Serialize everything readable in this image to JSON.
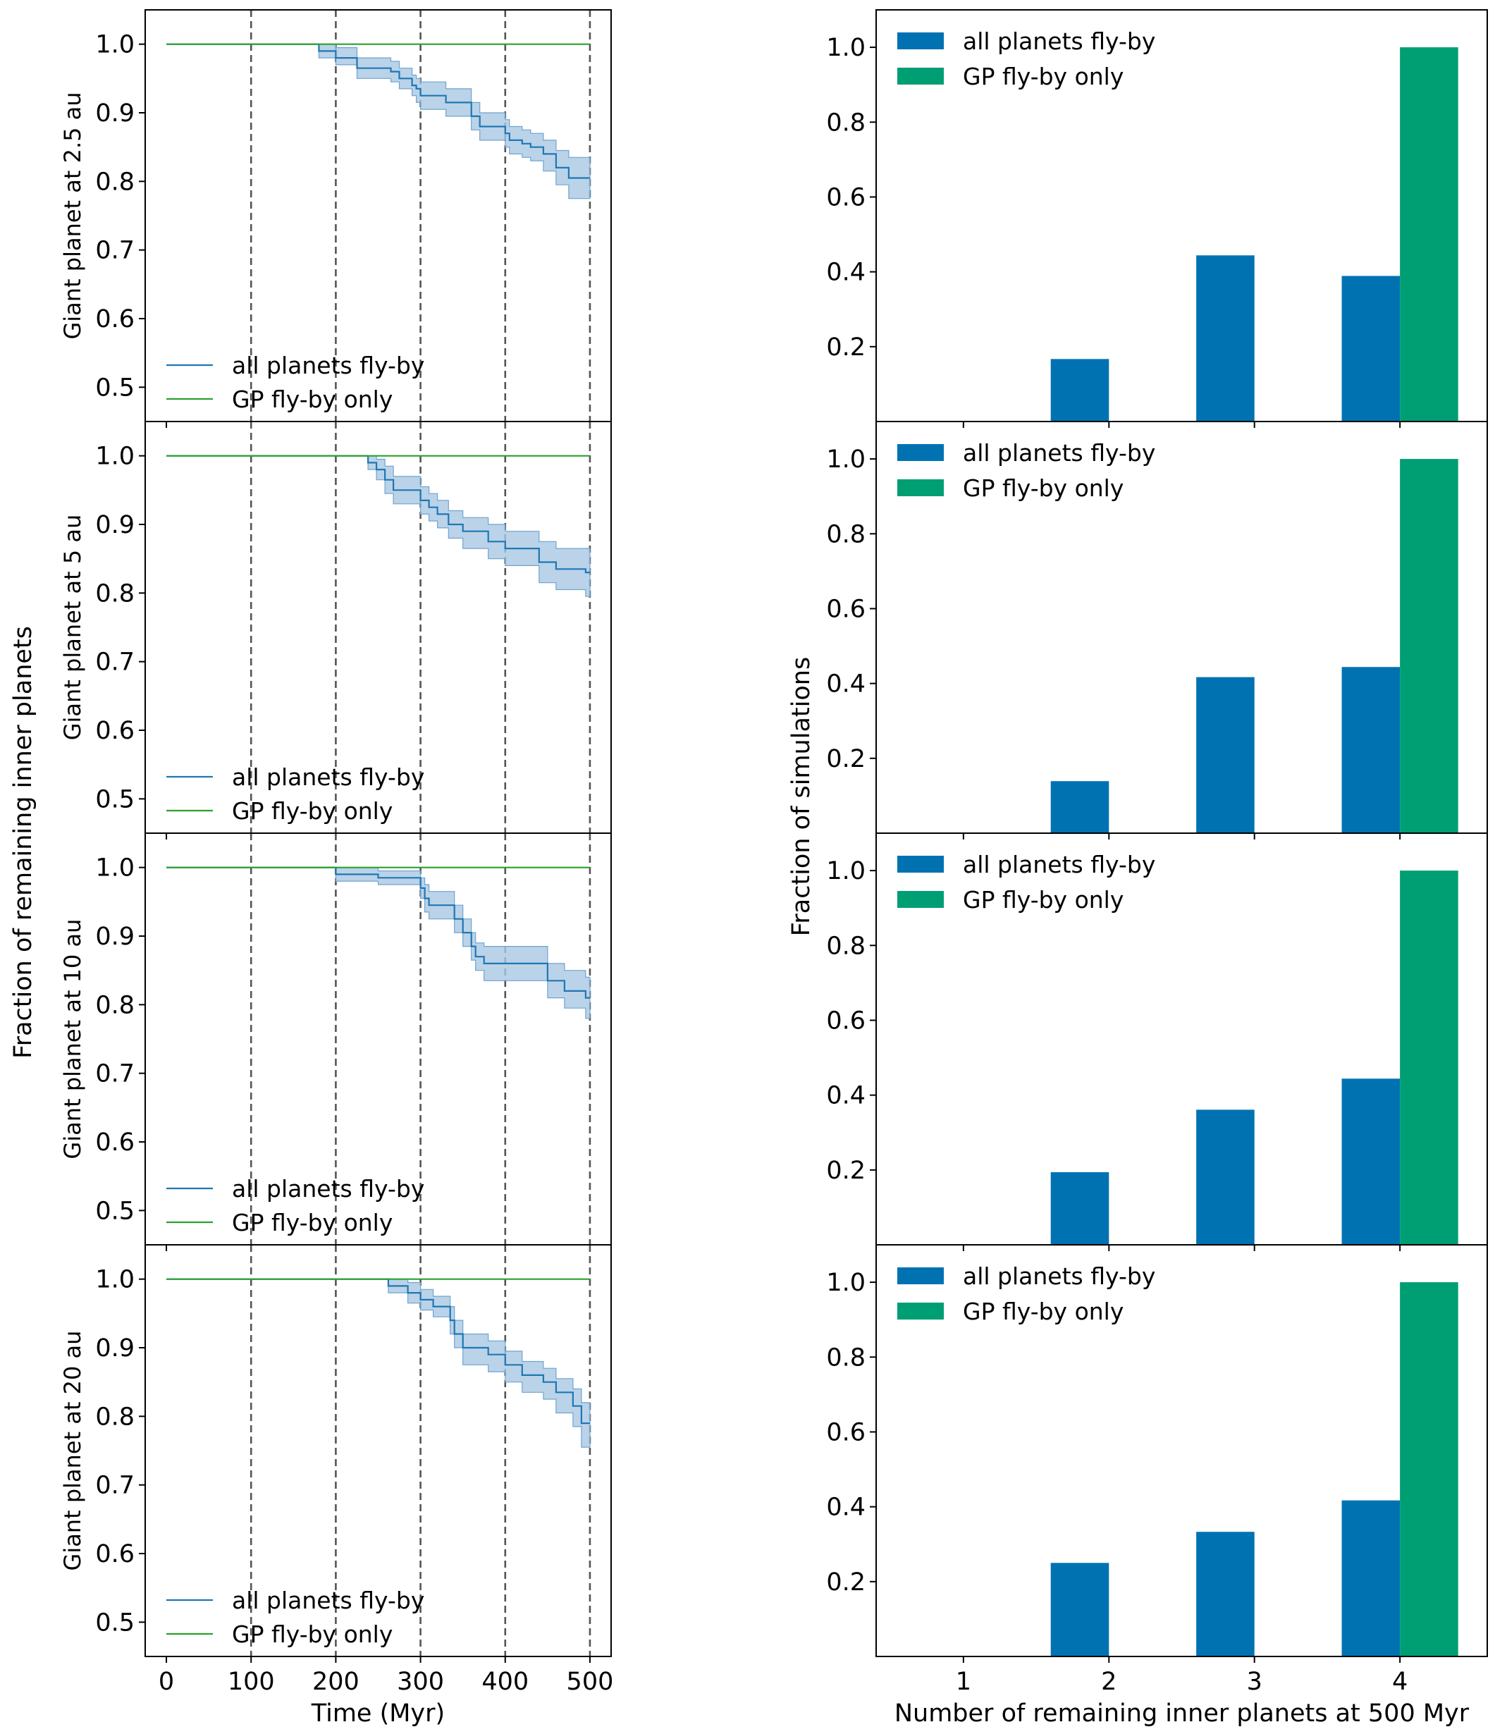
{
  "figure": {
    "left_ylabel": "Fraction of remaining inner planets",
    "right_ylabel": "Fraction of simulations"
  },
  "colors": {
    "all_line": "#1f77b4",
    "gp_line": "#2ca02c",
    "band": "#a9c8e3",
    "bar_all": "#0072b2",
    "bar_gp": "#009e73",
    "vline": "#555555"
  },
  "chart_data": [
    {
      "type": "line",
      "panel": "left-1",
      "ylabel": "Giant planet at 2.5 au",
      "xlabel": "",
      "xlim": [
        -25,
        525
      ],
      "ylim": [
        0.45,
        1.05
      ],
      "xticks": [
        0,
        100,
        200,
        300,
        400,
        500
      ],
      "yticks": [
        0.5,
        0.6,
        0.7,
        0.8,
        0.9,
        1.0
      ],
      "ytick_labels": [
        "0.5",
        "0.6",
        "0.7",
        "0.8",
        "0.9",
        "1.0"
      ],
      "vlines": [
        100,
        200,
        300,
        400,
        500
      ],
      "legend": [
        "all planets fly-by",
        "GP fly-by only"
      ],
      "series": [
        {
          "name": "all planets fly-by",
          "step": true,
          "x": [
            0,
            180,
            180,
            200,
            200,
            225,
            225,
            265,
            265,
            275,
            275,
            290,
            290,
            295,
            295,
            300,
            300,
            330,
            330,
            360,
            360,
            370,
            370,
            400,
            400,
            405,
            405,
            420,
            420,
            430,
            430,
            445,
            445,
            460,
            460,
            475,
            475,
            500
          ],
          "y": [
            1.0,
            1.0,
            0.99,
            0.99,
            0.98,
            0.98,
            0.965,
            0.965,
            0.96,
            0.96,
            0.95,
            0.95,
            0.94,
            0.94,
            0.935,
            0.935,
            0.925,
            0.925,
            0.915,
            0.915,
            0.895,
            0.895,
            0.88,
            0.88,
            0.87,
            0.87,
            0.86,
            0.86,
            0.855,
            0.855,
            0.85,
            0.85,
            0.84,
            0.84,
            0.82,
            0.82,
            0.805,
            0.805
          ],
          "lower": [
            1.0,
            1.0,
            0.98,
            0.98,
            0.97,
            0.97,
            0.95,
            0.95,
            0.945,
            0.945,
            0.935,
            0.935,
            0.925,
            0.925,
            0.915,
            0.915,
            0.905,
            0.905,
            0.895,
            0.895,
            0.875,
            0.875,
            0.86,
            0.86,
            0.85,
            0.85,
            0.84,
            0.84,
            0.835,
            0.835,
            0.83,
            0.83,
            0.815,
            0.815,
            0.795,
            0.795,
            0.775,
            0.775
          ],
          "upper": [
            1.0,
            1.0,
            1.0,
            1.0,
            0.995,
            0.995,
            0.98,
            0.98,
            0.975,
            0.975,
            0.965,
            0.965,
            0.955,
            0.955,
            0.95,
            0.95,
            0.945,
            0.945,
            0.935,
            0.935,
            0.915,
            0.915,
            0.9,
            0.9,
            0.89,
            0.89,
            0.88,
            0.88,
            0.875,
            0.875,
            0.87,
            0.87,
            0.86,
            0.86,
            0.845,
            0.845,
            0.835,
            0.835
          ]
        },
        {
          "name": "GP fly-by only",
          "x": [
            0,
            500
          ],
          "y": [
            1.0,
            1.0
          ]
        }
      ]
    },
    {
      "type": "line",
      "panel": "left-2",
      "ylabel": "Giant planet at 5 au",
      "xlabel": "",
      "xlim": [
        -25,
        525
      ],
      "ylim": [
        0.45,
        1.05
      ],
      "xticks": [
        0,
        100,
        200,
        300,
        400,
        500
      ],
      "yticks": [
        0.5,
        0.6,
        0.7,
        0.8,
        0.9,
        1.0
      ],
      "ytick_labels": [
        "0.5",
        "0.6",
        "0.7",
        "0.8",
        "0.9",
        "1.0"
      ],
      "vlines": [
        100,
        200,
        300,
        400,
        500
      ],
      "legend": [
        "all planets fly-by",
        "GP fly-by only"
      ],
      "series": [
        {
          "name": "all planets fly-by",
          "step": true,
          "x": [
            0,
            238,
            238,
            248,
            248,
            258,
            258,
            268,
            268,
            300,
            300,
            310,
            310,
            320,
            320,
            333,
            333,
            350,
            350,
            380,
            380,
            400,
            400,
            440,
            440,
            460,
            460,
            495,
            495,
            500
          ],
          "y": [
            1.0,
            1.0,
            0.99,
            0.99,
            0.98,
            0.98,
            0.965,
            0.965,
            0.95,
            0.95,
            0.935,
            0.935,
            0.925,
            0.925,
            0.915,
            0.915,
            0.9,
            0.9,
            0.89,
            0.89,
            0.875,
            0.875,
            0.865,
            0.865,
            0.845,
            0.845,
            0.835,
            0.835,
            0.83,
            0.83
          ],
          "lower": [
            1.0,
            1.0,
            0.98,
            0.98,
            0.965,
            0.965,
            0.945,
            0.945,
            0.93,
            0.93,
            0.915,
            0.915,
            0.905,
            0.905,
            0.895,
            0.895,
            0.88,
            0.88,
            0.865,
            0.865,
            0.85,
            0.85,
            0.84,
            0.84,
            0.815,
            0.815,
            0.805,
            0.805,
            0.795,
            0.795
          ],
          "upper": [
            1.0,
            1.0,
            1.0,
            1.0,
            0.995,
            0.995,
            0.985,
            0.985,
            0.97,
            0.97,
            0.955,
            0.955,
            0.945,
            0.945,
            0.935,
            0.935,
            0.92,
            0.92,
            0.91,
            0.91,
            0.9,
            0.9,
            0.89,
            0.89,
            0.875,
            0.875,
            0.865,
            0.865,
            0.865,
            0.865
          ]
        },
        {
          "name": "GP fly-by only",
          "x": [
            0,
            500
          ],
          "y": [
            1.0,
            1.0
          ]
        }
      ]
    },
    {
      "type": "line",
      "panel": "left-3",
      "ylabel": "Giant planet at 10 au",
      "xlabel": "",
      "xlim": [
        -25,
        525
      ],
      "ylim": [
        0.45,
        1.05
      ],
      "xticks": [
        0,
        100,
        200,
        300,
        400,
        500
      ],
      "yticks": [
        0.5,
        0.6,
        0.7,
        0.8,
        0.9,
        1.0
      ],
      "ytick_labels": [
        "0.5",
        "0.6",
        "0.7",
        "0.8",
        "0.9",
        "1.0"
      ],
      "vlines": [
        100,
        200,
        300,
        400,
        500
      ],
      "legend": [
        "all planets fly-by",
        "GP fly-by only"
      ],
      "series": [
        {
          "name": "all planets fly-by",
          "step": true,
          "x": [
            0,
            200,
            200,
            250,
            250,
            300,
            300,
            305,
            305,
            310,
            310,
            340,
            340,
            350,
            350,
            360,
            360,
            365,
            365,
            375,
            375,
            450,
            450,
            470,
            470,
            495,
            495,
            500
          ],
          "y": [
            1.0,
            1.0,
            0.99,
            0.99,
            0.985,
            0.985,
            0.97,
            0.97,
            0.955,
            0.955,
            0.945,
            0.945,
            0.925,
            0.925,
            0.905,
            0.905,
            0.885,
            0.885,
            0.87,
            0.87,
            0.86,
            0.86,
            0.835,
            0.835,
            0.82,
            0.82,
            0.81,
            0.81
          ],
          "lower": [
            1.0,
            1.0,
            0.98,
            0.98,
            0.975,
            0.975,
            0.955,
            0.955,
            0.935,
            0.935,
            0.925,
            0.925,
            0.905,
            0.905,
            0.885,
            0.885,
            0.865,
            0.865,
            0.85,
            0.85,
            0.835,
            0.835,
            0.81,
            0.81,
            0.795,
            0.795,
            0.78,
            0.78
          ],
          "upper": [
            1.0,
            1.0,
            1.0,
            1.0,
            0.995,
            0.995,
            0.985,
            0.985,
            0.975,
            0.975,
            0.965,
            0.965,
            0.945,
            0.945,
            0.925,
            0.925,
            0.905,
            0.905,
            0.89,
            0.89,
            0.885,
            0.885,
            0.86,
            0.86,
            0.85,
            0.85,
            0.84,
            0.84
          ]
        },
        {
          "name": "GP fly-by only",
          "x": [
            0,
            500
          ],
          "y": [
            1.0,
            1.0
          ]
        }
      ]
    },
    {
      "type": "line",
      "panel": "left-4",
      "ylabel": "Giant planet at 20 au",
      "xlabel": "Time (Myr)",
      "xlim": [
        -25,
        525
      ],
      "ylim": [
        0.45,
        1.05
      ],
      "xticks": [
        0,
        100,
        200,
        300,
        400,
        500
      ],
      "xtick_labels": [
        "0",
        "100",
        "200",
        "300",
        "400",
        "500"
      ],
      "yticks": [
        0.5,
        0.6,
        0.7,
        0.8,
        0.9,
        1.0
      ],
      "ytick_labels": [
        "0.5",
        "0.6",
        "0.7",
        "0.8",
        "0.9",
        "1.0"
      ],
      "vlines": [
        100,
        200,
        300,
        400,
        500
      ],
      "legend": [
        "all planets fly-by",
        "GP fly-by only"
      ],
      "series": [
        {
          "name": "all planets fly-by",
          "step": true,
          "x": [
            0,
            262,
            262,
            285,
            285,
            300,
            300,
            315,
            315,
            335,
            335,
            340,
            340,
            350,
            350,
            380,
            380,
            400,
            400,
            420,
            420,
            445,
            445,
            460,
            460,
            480,
            480,
            490,
            490,
            500
          ],
          "y": [
            1.0,
            1.0,
            0.99,
            0.99,
            0.98,
            0.98,
            0.97,
            0.97,
            0.96,
            0.96,
            0.94,
            0.94,
            0.92,
            0.92,
            0.9,
            0.9,
            0.89,
            0.89,
            0.875,
            0.875,
            0.86,
            0.86,
            0.85,
            0.85,
            0.835,
            0.835,
            0.815,
            0.815,
            0.79,
            0.79
          ],
          "lower": [
            1.0,
            1.0,
            0.98,
            0.98,
            0.965,
            0.965,
            0.955,
            0.955,
            0.945,
            0.945,
            0.92,
            0.92,
            0.9,
            0.9,
            0.875,
            0.875,
            0.865,
            0.865,
            0.85,
            0.85,
            0.835,
            0.835,
            0.825,
            0.825,
            0.805,
            0.805,
            0.785,
            0.785,
            0.755,
            0.755
          ],
          "upper": [
            1.0,
            1.0,
            1.0,
            1.0,
            0.995,
            0.995,
            0.985,
            0.985,
            0.975,
            0.975,
            0.96,
            0.96,
            0.94,
            0.94,
            0.92,
            0.92,
            0.91,
            0.91,
            0.895,
            0.895,
            0.88,
            0.88,
            0.87,
            0.87,
            0.855,
            0.855,
            0.84,
            0.84,
            0.82,
            0.82
          ]
        },
        {
          "name": "GP fly-by only",
          "x": [
            0,
            500
          ],
          "y": [
            1.0,
            1.0
          ]
        }
      ]
    },
    {
      "type": "bar",
      "panel": "right-1",
      "xlabel": "",
      "ylabel": "",
      "xlim": [
        0.4,
        4.6
      ],
      "ylim": [
        0,
        1.1
      ],
      "xticks": [
        1,
        2,
        3,
        4
      ],
      "yticks": [
        0.2,
        0.4,
        0.6,
        0.8,
        1.0
      ],
      "ytick_labels": [
        "0.2",
        "0.4",
        "0.6",
        "0.8",
        "1.0"
      ],
      "categories": [
        1,
        2,
        3,
        4
      ],
      "legend": [
        "all planets fly-by",
        "GP fly-by only"
      ],
      "series": [
        {
          "name": "all planets fly-by",
          "values": [
            0.0,
            0.167,
            0.444,
            0.389
          ]
        },
        {
          "name": "GP fly-by only",
          "values": [
            0.0,
            0.0,
            0.0,
            1.0
          ]
        }
      ]
    },
    {
      "type": "bar",
      "panel": "right-2",
      "xlabel": "",
      "ylabel": "",
      "xlim": [
        0.4,
        4.6
      ],
      "ylim": [
        0,
        1.1
      ],
      "xticks": [
        1,
        2,
        3,
        4
      ],
      "yticks": [
        0.2,
        0.4,
        0.6,
        0.8,
        1.0
      ],
      "ytick_labels": [
        "0.2",
        "0.4",
        "0.6",
        "0.8",
        "1.0"
      ],
      "categories": [
        1,
        2,
        3,
        4
      ],
      "legend": [
        "all planets fly-by",
        "GP fly-by only"
      ],
      "series": [
        {
          "name": "all planets fly-by",
          "values": [
            0.0,
            0.139,
            0.417,
            0.444
          ]
        },
        {
          "name": "GP fly-by only",
          "values": [
            0.0,
            0.0,
            0.0,
            1.0
          ]
        }
      ]
    },
    {
      "type": "bar",
      "panel": "right-3",
      "xlabel": "",
      "ylabel": "",
      "xlim": [
        0.4,
        4.6
      ],
      "ylim": [
        0,
        1.1
      ],
      "xticks": [
        1,
        2,
        3,
        4
      ],
      "yticks": [
        0.2,
        0.4,
        0.6,
        0.8,
        1.0
      ],
      "ytick_labels": [
        "0.2",
        "0.4",
        "0.6",
        "0.8",
        "1.0"
      ],
      "categories": [
        1,
        2,
        3,
        4
      ],
      "legend": [
        "all planets fly-by",
        "GP fly-by only"
      ],
      "series": [
        {
          "name": "all planets fly-by",
          "values": [
            0.0,
            0.194,
            0.361,
            0.444
          ]
        },
        {
          "name": "GP fly-by only",
          "values": [
            0.0,
            0.0,
            0.0,
            1.0
          ]
        }
      ]
    },
    {
      "type": "bar",
      "panel": "right-4",
      "xlabel": "Number of remaining inner planets at 500 Myr",
      "ylabel": "",
      "xlim": [
        0.4,
        4.6
      ],
      "ylim": [
        0,
        1.1
      ],
      "xticks": [
        1,
        2,
        3,
        4
      ],
      "xtick_labels": [
        "1",
        "2",
        "3",
        "4"
      ],
      "yticks": [
        0.2,
        0.4,
        0.6,
        0.8,
        1.0
      ],
      "ytick_labels": [
        "0.2",
        "0.4",
        "0.6",
        "0.8",
        "1.0"
      ],
      "categories": [
        1,
        2,
        3,
        4
      ],
      "legend": [
        "all planets fly-by",
        "GP fly-by only"
      ],
      "series": [
        {
          "name": "all planets fly-by",
          "values": [
            0.0,
            0.25,
            0.333,
            0.417
          ]
        },
        {
          "name": "GP fly-by only",
          "values": [
            0.0,
            0.0,
            0.0,
            1.0
          ]
        }
      ]
    }
  ]
}
